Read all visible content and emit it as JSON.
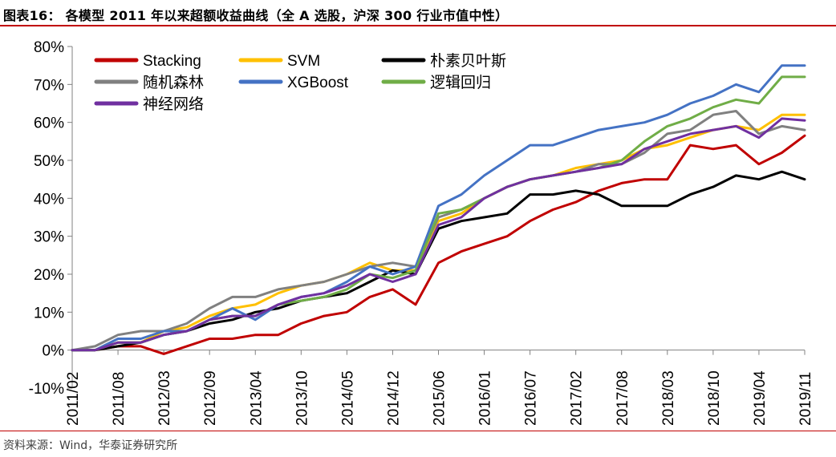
{
  "title": "图表16： 各模型 2011 年以来超额收益曲线（全 A 选股，沪深 300 行业市值中性）",
  "source": "资料来源：Wind，华泰证券研究所",
  "colors": {
    "accent": "#c00000"
  },
  "chart_data": {
    "type": "line",
    "ylim": [
      -0.1,
      0.8
    ],
    "yticks": [
      "80%",
      "70%",
      "60%",
      "50%",
      "40%",
      "30%",
      "20%",
      "10%",
      "0%",
      "-10%"
    ],
    "ytick_values": [
      0.8,
      0.7,
      0.6,
      0.5,
      0.4,
      0.3,
      0.2,
      0.1,
      0.0,
      -0.1
    ],
    "xticks": [
      "2011/02",
      "2011/08",
      "2012/03",
      "2012/09",
      "2013/04",
      "2013/10",
      "2014/05",
      "2014/12",
      "2015/06",
      "2016/01",
      "2016/07",
      "2017/02",
      "2017/08",
      "2018/03",
      "2018/10",
      "2019/04",
      "2019/11"
    ],
    "x": [
      "2011/02",
      "2011/05",
      "2011/08",
      "2011/11",
      "2012/03",
      "2012/06",
      "2012/09",
      "2012/12",
      "2013/04",
      "2013/07",
      "2013/10",
      "2014/01",
      "2014/05",
      "2014/08",
      "2014/12",
      "2015/03",
      "2015/06",
      "2015/09",
      "2016/01",
      "2016/04",
      "2016/07",
      "2016/10",
      "2017/02",
      "2017/05",
      "2017/08",
      "2017/11",
      "2018/03",
      "2018/06",
      "2018/10",
      "2019/01",
      "2019/04",
      "2019/07",
      "2019/11"
    ],
    "grid": false,
    "legend_position": "top-left",
    "series": [
      {
        "name": "Stacking",
        "color": "#c00000",
        "values": [
          0.0,
          0.0,
          0.01,
          0.01,
          -0.01,
          0.01,
          0.03,
          0.03,
          0.04,
          0.04,
          0.07,
          0.09,
          0.1,
          0.14,
          0.16,
          0.12,
          0.23,
          0.26,
          0.28,
          0.3,
          0.34,
          0.37,
          0.39,
          0.42,
          0.44,
          0.45,
          0.45,
          0.54,
          0.53,
          0.54,
          0.49,
          0.52,
          0.565
        ]
      },
      {
        "name": "SVM",
        "color": "#ffc000",
        "values": [
          0.0,
          0.0,
          0.02,
          0.02,
          0.05,
          0.06,
          0.09,
          0.11,
          0.12,
          0.15,
          0.17,
          0.18,
          0.2,
          0.23,
          0.21,
          0.21,
          0.34,
          0.36,
          0.4,
          0.43,
          0.45,
          0.46,
          0.48,
          0.49,
          0.5,
          0.53,
          0.54,
          0.56,
          0.58,
          0.59,
          0.58,
          0.62,
          0.62
        ]
      },
      {
        "name": "朴素贝叶斯",
        "color": "#000000",
        "values": [
          0.0,
          0.0,
          0.01,
          0.02,
          0.04,
          0.05,
          0.07,
          0.08,
          0.1,
          0.11,
          0.13,
          0.14,
          0.15,
          0.18,
          0.21,
          0.2,
          0.32,
          0.34,
          0.35,
          0.36,
          0.41,
          0.41,
          0.42,
          0.41,
          0.38,
          0.38,
          0.38,
          0.41,
          0.43,
          0.46,
          0.45,
          0.47,
          0.45
        ]
      },
      {
        "name": "随机森林",
        "color": "#808080",
        "values": [
          0.0,
          0.01,
          0.04,
          0.05,
          0.05,
          0.07,
          0.11,
          0.14,
          0.14,
          0.16,
          0.17,
          0.18,
          0.2,
          0.22,
          0.23,
          0.22,
          0.35,
          0.37,
          0.4,
          0.43,
          0.45,
          0.46,
          0.47,
          0.49,
          0.49,
          0.52,
          0.57,
          0.58,
          0.62,
          0.63,
          0.57,
          0.59,
          0.58
        ]
      },
      {
        "name": "XGBoost",
        "color": "#4472c4",
        "values": [
          0.0,
          0.0,
          0.03,
          0.03,
          0.05,
          0.05,
          0.08,
          0.11,
          0.08,
          0.12,
          0.14,
          0.15,
          0.18,
          0.22,
          0.2,
          0.22,
          0.38,
          0.41,
          0.46,
          0.5,
          0.54,
          0.54,
          0.56,
          0.58,
          0.59,
          0.6,
          0.62,
          0.65,
          0.67,
          0.7,
          0.68,
          0.75,
          0.75
        ]
      },
      {
        "name": "逻辑回归",
        "color": "#70ad47",
        "values": [
          0.0,
          0.0,
          0.02,
          0.02,
          0.04,
          0.05,
          0.08,
          0.09,
          0.09,
          0.12,
          0.13,
          0.14,
          0.16,
          0.2,
          0.19,
          0.21,
          0.36,
          0.37,
          0.4,
          0.43,
          0.45,
          0.46,
          0.47,
          0.48,
          0.5,
          0.55,
          0.59,
          0.61,
          0.64,
          0.66,
          0.65,
          0.72,
          0.72
        ]
      },
      {
        "name": "神经网络",
        "color": "#7030a0",
        "values": [
          0.0,
          0.0,
          0.02,
          0.02,
          0.04,
          0.05,
          0.08,
          0.09,
          0.09,
          0.12,
          0.14,
          0.15,
          0.17,
          0.2,
          0.18,
          0.2,
          0.33,
          0.35,
          0.4,
          0.43,
          0.45,
          0.46,
          0.47,
          0.48,
          0.49,
          0.53,
          0.55,
          0.57,
          0.58,
          0.59,
          0.56,
          0.61,
          0.605
        ]
      }
    ]
  }
}
